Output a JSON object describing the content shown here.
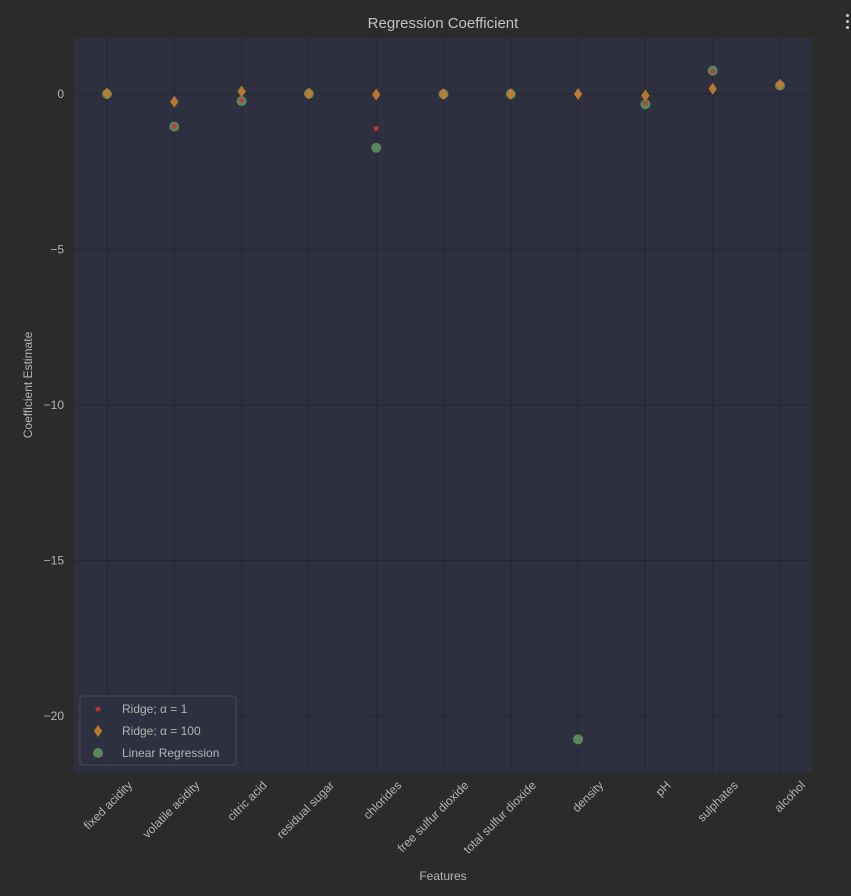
{
  "menu": {
    "icon": "more-vertical-icon"
  },
  "chart_data": {
    "type": "scatter",
    "title": "Regression Coefficient",
    "xlabel": "Features",
    "ylabel": "Coefficient Estimate",
    "categories": [
      "fixed acidity",
      "volatile acidity",
      "citric acid",
      "residual sugar",
      "chlorides",
      "free sulfur dioxide",
      "total sulfur dioxide",
      "density",
      "pH",
      "sulphates",
      "alcohol"
    ],
    "ylim": [
      -21.8,
      1.8
    ],
    "yticks": [
      0,
      -5,
      -10,
      -15,
      -20
    ],
    "grid": true,
    "legend_position": "bottom-left",
    "series": [
      {
        "name": "Linear Regression",
        "marker": "circle",
        "color": "#5e8a5e",
        "values": [
          0.0,
          -1.05,
          -0.23,
          0.01,
          -1.73,
          0.0,
          0.0,
          -20.75,
          -0.33,
          0.75,
          0.27
        ]
      },
      {
        "name": "Ridge; α = 1",
        "marker": "star",
        "color": "#c0393a",
        "values": [
          0.01,
          -1.04,
          -0.2,
          0.01,
          -1.11,
          0.0,
          0.0,
          0.0,
          -0.28,
          0.72,
          0.27
        ]
      },
      {
        "name": "Ridge; α = 100",
        "marker": "diamond",
        "color": "#c4822c",
        "values": [
          0.02,
          -0.25,
          0.08,
          0.01,
          -0.02,
          0.0,
          0.0,
          0.0,
          -0.05,
          0.17,
          0.3
        ]
      }
    ],
    "legend": [
      {
        "label": "Ridge; α = 1",
        "marker": "star",
        "color": "#c0393a"
      },
      {
        "label": "Ridge; α = 100",
        "marker": "diamond",
        "color": "#c4822c"
      },
      {
        "label": "Linear Regression",
        "marker": "circle",
        "color": "#5e8a5e"
      }
    ]
  }
}
